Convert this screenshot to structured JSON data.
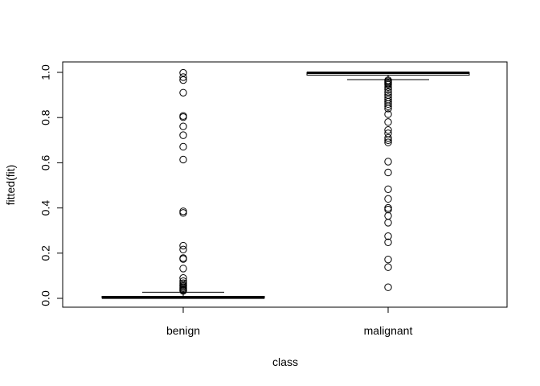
{
  "chart_data": {
    "type": "box",
    "title": "",
    "xlabel": "class",
    "ylabel": "fitted(fit)",
    "ylim": [
      0,
      1
    ],
    "y_ticks": [
      "0.0",
      "0.2",
      "0.4",
      "0.6",
      "0.8",
      "1.0"
    ],
    "y_tick_values": [
      0.0,
      0.2,
      0.4,
      0.6,
      0.8,
      1.0
    ],
    "categories": [
      "benign",
      "malignant"
    ],
    "series": [
      {
        "category": "benign",
        "whisker_low": 0.0,
        "q1": 0.001,
        "median": 0.003,
        "q3": 0.009,
        "whisker_high": 0.027,
        "outliers": [
          0.998,
          0.979,
          0.966,
          0.91,
          0.807,
          0.802,
          0.761,
          0.722,
          0.671,
          0.614,
          0.385,
          0.378,
          0.233,
          0.216,
          0.178,
          0.174,
          0.132,
          0.09,
          0.076,
          0.067,
          0.06,
          0.055,
          0.05,
          0.045,
          0.04,
          0.036,
          0.033
        ]
      },
      {
        "category": "malignant",
        "whisker_low": 0.968,
        "q1": 0.988,
        "median": 0.998,
        "q3": 1.0,
        "whisker_high": 1.0,
        "outliers": [
          0.965,
          0.96,
          0.955,
          0.95,
          0.945,
          0.935,
          0.925,
          0.912,
          0.9,
          0.89,
          0.88,
          0.87,
          0.86,
          0.85,
          0.84,
          0.815,
          0.78,
          0.745,
          0.73,
          0.71,
          0.7,
          0.69,
          0.605,
          0.557,
          0.483,
          0.44,
          0.4,
          0.393,
          0.365,
          0.335,
          0.275,
          0.248,
          0.172,
          0.138,
          0.049
        ]
      }
    ],
    "grid": false,
    "legend": "none"
  }
}
